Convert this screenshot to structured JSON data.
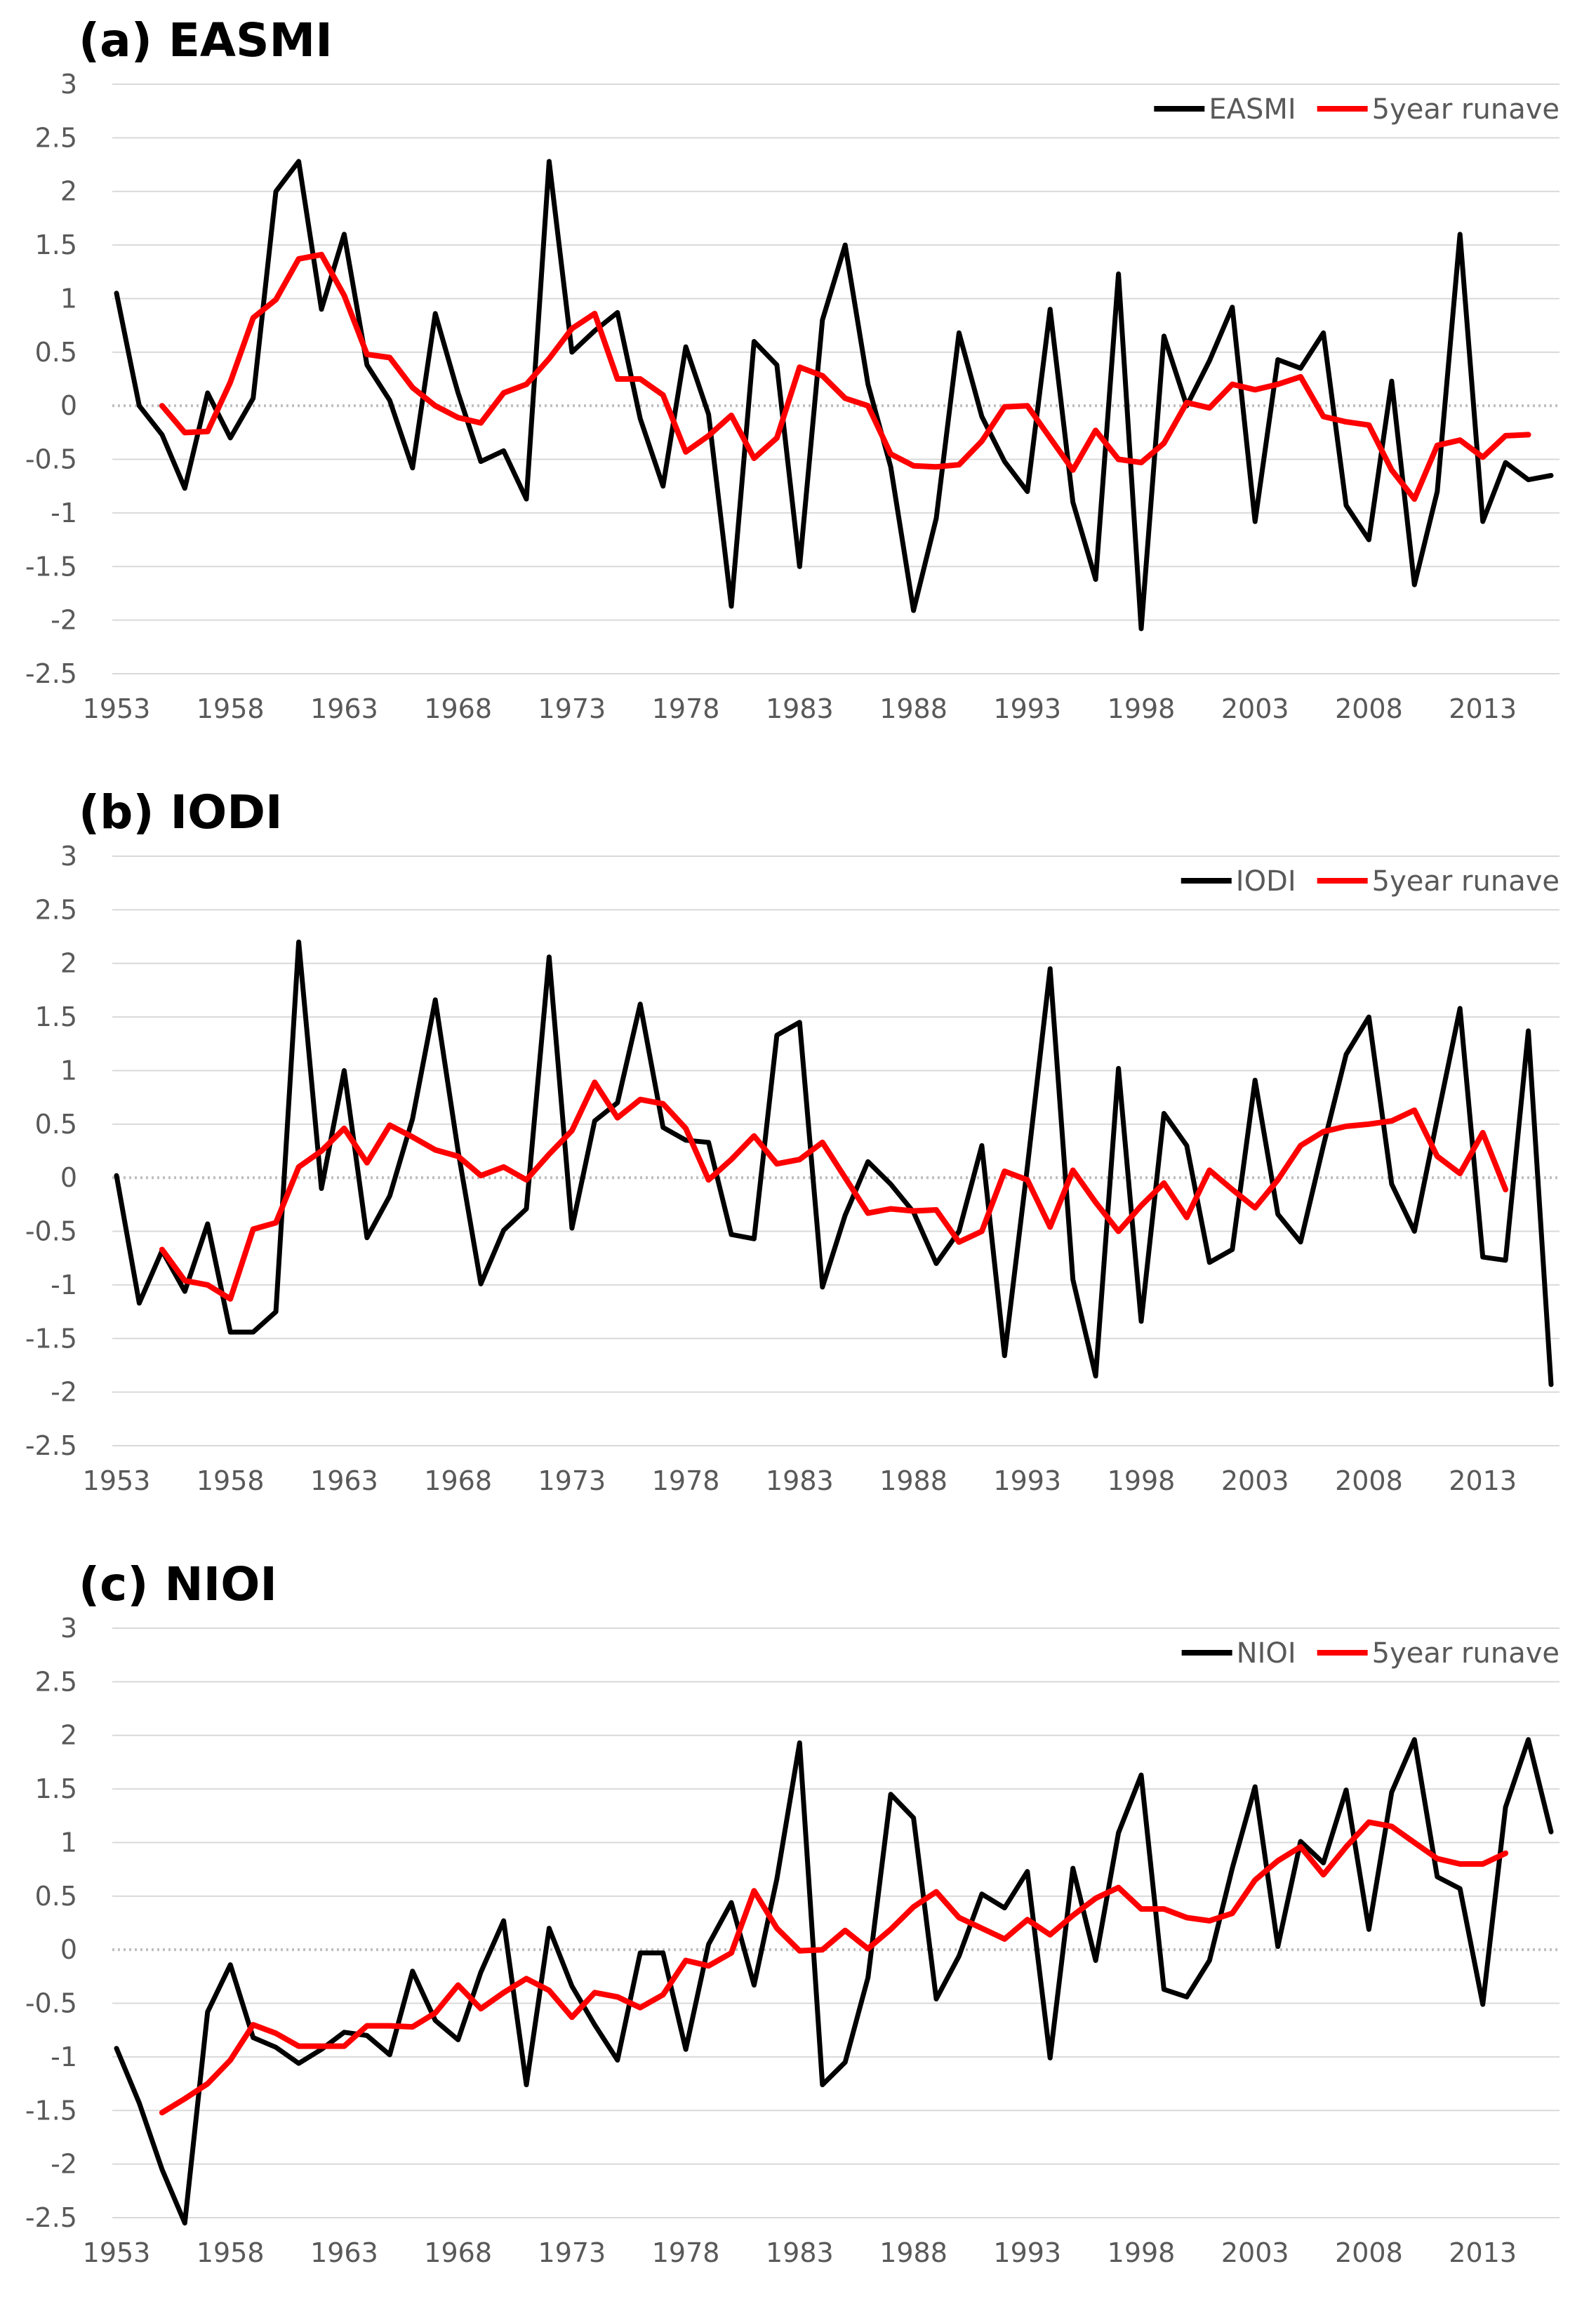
{
  "chart_data": [
    {
      "type": "line",
      "title": "(a)  EASMI",
      "x": [
        1953,
        1954,
        1955,
        1956,
        1957,
        1958,
        1959,
        1960,
        1961,
        1962,
        1963,
        1964,
        1965,
        1966,
        1967,
        1968,
        1969,
        1970,
        1971,
        1972,
        1973,
        1974,
        1975,
        1976,
        1977,
        1978,
        1979,
        1980,
        1981,
        1982,
        1983,
        1984,
        1985,
        1986,
        1987,
        1988,
        1989,
        1990,
        1991,
        1992,
        1993,
        1994,
        1995,
        1996,
        1997,
        1998,
        1999,
        2000,
        2001,
        2002,
        2003,
        2004,
        2005,
        2006,
        2007,
        2008,
        2009,
        2010,
        2011,
        2012,
        2013,
        2014,
        2015,
        2016
      ],
      "xticks": [
        "1953",
        "1958",
        "1963",
        "1968",
        "1973",
        "1978",
        "1983",
        "1988",
        "1993",
        "1998",
        "2003",
        "2008",
        "2013"
      ],
      "yticks": [
        "3",
        "2.5",
        "2",
        "1.5",
        "1",
        "0.5",
        "0",
        "-0.5",
        "-1",
        "-1.5",
        "-2",
        "-2.5"
      ],
      "ylim": [
        -2.5,
        3
      ],
      "grid": true,
      "legend_position": "top-right",
      "series": [
        {
          "name": "EASMI",
          "color": "#000000",
          "values": [
            1.05,
            0.0,
            -0.27,
            -0.77,
            0.12,
            -0.3,
            0.07,
            2.0,
            2.28,
            0.9,
            1.6,
            0.38,
            0.05,
            -0.58,
            0.86,
            0.12,
            -0.52,
            -0.42,
            -0.87,
            2.28,
            0.5,
            0.7,
            0.87,
            -0.12,
            -0.75,
            0.55,
            -0.08,
            -1.87,
            0.6,
            0.38,
            -1.5,
            0.8,
            1.5,
            0.2,
            -0.57,
            -1.91,
            -1.05,
            0.68,
            -0.1,
            -0.52,
            -0.8,
            0.9,
            -0.9,
            -1.62,
            1.23,
            -2.08,
            0.65,
            0.0,
            0.42,
            0.92,
            -1.08,
            0.43,
            0.35,
            0.68,
            -0.93,
            -1.25,
            0.23,
            -1.67,
            -0.8,
            1.6,
            -1.08,
            -0.53,
            -0.69,
            -0.65
          ]
        },
        {
          "name": "5year runave",
          "color": "#ff0000",
          "values": [
            null,
            null,
            0.0,
            -0.25,
            -0.24,
            0.22,
            0.82,
            0.99,
            1.37,
            1.41,
            1.03,
            0.48,
            0.45,
            0.17,
            0.0,
            -0.11,
            -0.16,
            0.12,
            0.2,
            0.44,
            0.72,
            0.86,
            0.25,
            0.25,
            0.1,
            -0.43,
            -0.28,
            -0.09,
            -0.49,
            -0.3,
            0.36,
            0.28,
            0.07,
            0.0,
            -0.45,
            -0.56,
            -0.57,
            -0.55,
            -0.33,
            -0.01,
            0.0,
            -0.3,
            -0.6,
            -0.23,
            -0.5,
            -0.53,
            -0.35,
            0.03,
            -0.02,
            0.2,
            0.15,
            0.2,
            0.27,
            -0.1,
            -0.15,
            -0.18,
            -0.6,
            -0.87,
            -0.37,
            -0.32,
            -0.48,
            -0.28,
            -0.27,
            null
          ]
        }
      ]
    },
    {
      "type": "line",
      "title": "(b)  IODI",
      "x": [
        1953,
        1954,
        1955,
        1956,
        1957,
        1958,
        1959,
        1960,
        1961,
        1962,
        1963,
        1964,
        1965,
        1966,
        1967,
        1968,
        1969,
        1970,
        1971,
        1972,
        1973,
        1974,
        1975,
        1976,
        1977,
        1978,
        1979,
        1980,
        1981,
        1982,
        1983,
        1984,
        1985,
        1986,
        1987,
        1988,
        1989,
        1990,
        1991,
        1992,
        1993,
        1994,
        1995,
        1996,
        1997,
        1998,
        1999,
        2000,
        2001,
        2002,
        2003,
        2004,
        2005,
        2006,
        2007,
        2008,
        2009,
        2010,
        2011,
        2012,
        2013,
        2014,
        2015,
        2016
      ],
      "xticks": [
        "1953",
        "1958",
        "1963",
        "1968",
        "1973",
        "1978",
        "1983",
        "1988",
        "1993",
        "1998",
        "2003",
        "2008",
        "2013"
      ],
      "yticks": [
        "3",
        "2.5",
        "2",
        "1.5",
        "1",
        "0.5",
        "0",
        "-0.5",
        "-1",
        "-1.5",
        "-2",
        "-2.5"
      ],
      "ylim": [
        -2.5,
        3
      ],
      "grid": true,
      "legend_position": "top-right",
      "series": [
        {
          "name": "IODI",
          "color": "#000000",
          "values": [
            0.02,
            -1.17,
            -0.68,
            -1.06,
            -0.43,
            -1.44,
            -1.44,
            -1.25,
            2.2,
            -0.1,
            1.0,
            -0.56,
            -0.17,
            0.55,
            1.66,
            0.25,
            -0.99,
            -0.49,
            -0.29,
            2.06,
            -0.47,
            0.53,
            0.7,
            1.62,
            0.47,
            0.35,
            0.33,
            -0.53,
            -0.57,
            1.33,
            1.45,
            -1.02,
            -0.35,
            0.15,
            -0.06,
            -0.32,
            -0.8,
            -0.5,
            0.3,
            -1.66,
            0.1,
            1.95,
            -0.95,
            -1.85,
            1.02,
            -1.34,
            0.6,
            0.3,
            -0.79,
            -0.67,
            0.91,
            -0.34,
            -0.6,
            0.3,
            1.15,
            1.5,
            -0.06,
            -0.5,
            0.55,
            1.58,
            -0.74,
            -0.77,
            1.37,
            -1.93
          ]
        },
        {
          "name": "5year runave",
          "color": "#ff0000",
          "values": [
            null,
            null,
            -0.67,
            -0.96,
            -1.0,
            -1.13,
            -0.48,
            -0.42,
            0.1,
            0.25,
            0.46,
            0.14,
            0.49,
            0.38,
            0.26,
            0.2,
            0.02,
            0.1,
            -0.02,
            0.22,
            0.44,
            0.89,
            0.56,
            0.73,
            0.69,
            0.46,
            -0.02,
            0.17,
            0.39,
            0.13,
            0.17,
            0.33,
            0.0,
            -0.33,
            -0.29,
            -0.31,
            -0.3,
            -0.6,
            -0.5,
            0.06,
            -0.02,
            -0.46,
            0.07,
            -0.23,
            -0.5,
            -0.26,
            -0.05,
            -0.37,
            0.07,
            -0.11,
            -0.28,
            -0.02,
            0.3,
            0.43,
            0.48,
            0.5,
            0.53,
            0.63,
            0.2,
            0.04,
            0.42,
            -0.11,
            null,
            null
          ]
        }
      ]
    },
    {
      "type": "line",
      "title": "(c)  NIOI",
      "x": [
        1953,
        1954,
        1955,
        1956,
        1957,
        1958,
        1959,
        1960,
        1961,
        1962,
        1963,
        1964,
        1965,
        1966,
        1967,
        1968,
        1969,
        1970,
        1971,
        1972,
        1973,
        1974,
        1975,
        1976,
        1977,
        1978,
        1979,
        1980,
        1981,
        1982,
        1983,
        1984,
        1985,
        1986,
        1987,
        1988,
        1989,
        1990,
        1991,
        1992,
        1993,
        1994,
        1995,
        1996,
        1997,
        1998,
        1999,
        2000,
        2001,
        2002,
        2003,
        2004,
        2005,
        2006,
        2007,
        2008,
        2009,
        2010,
        2011,
        2012,
        2013,
        2014,
        2015,
        2016
      ],
      "xticks": [
        "1953",
        "1958",
        "1963",
        "1968",
        "1973",
        "1978",
        "1983",
        "1988",
        "1993",
        "1998",
        "2003",
        "2008",
        "2013"
      ],
      "yticks": [
        "3",
        "2.5",
        "2",
        "1.5",
        "1",
        "0.5",
        "0",
        "-0.5",
        "-1",
        "-1.5",
        "-2",
        "-2.5"
      ],
      "ylim": [
        -2.5,
        3
      ],
      "grid": true,
      "legend_position": "top-right",
      "series": [
        {
          "name": "NIOI",
          "color": "#000000",
          "values": [
            -0.92,
            -1.43,
            -2.05,
            -2.55,
            -0.58,
            -0.14,
            -0.82,
            -0.91,
            -1.06,
            -0.93,
            -0.77,
            -0.8,
            -0.98,
            -0.2,
            -0.66,
            -0.84,
            -0.21,
            0.27,
            -1.26,
            0.2,
            -0.34,
            -0.7,
            -1.03,
            -0.03,
            -0.03,
            -0.93,
            0.05,
            0.44,
            -0.33,
            0.66,
            1.93,
            -1.26,
            -1.05,
            -0.26,
            1.45,
            1.23,
            -0.46,
            -0.06,
            0.52,
            0.39,
            0.73,
            -1.01,
            0.76,
            -0.1,
            1.09,
            1.63,
            -0.37,
            -0.44,
            -0.1,
            0.76,
            1.52,
            0.03,
            1.01,
            0.81,
            1.49,
            0.19,
            1.47,
            1.96,
            0.68,
            0.57,
            -0.51,
            1.33,
            1.96,
            1.1
          ]
        },
        {
          "name": "5year runave",
          "color": "#ff0000",
          "values": [
            null,
            null,
            -1.52,
            -1.39,
            -1.25,
            -1.03,
            -0.7,
            -0.78,
            -0.9,
            -0.9,
            -0.9,
            -0.71,
            -0.71,
            -0.72,
            -0.59,
            -0.33,
            -0.55,
            -0.4,
            -0.27,
            -0.38,
            -0.63,
            -0.4,
            -0.44,
            -0.54,
            -0.42,
            -0.1,
            -0.15,
            -0.03,
            0.55,
            0.2,
            -0.01,
            0.0,
            0.18,
            0.01,
            0.19,
            0.4,
            0.54,
            0.3,
            0.2,
            0.1,
            0.28,
            0.14,
            0.32,
            0.48,
            0.58,
            0.38,
            0.38,
            0.3,
            0.27,
            0.34,
            0.65,
            0.83,
            0.96,
            0.7,
            0.96,
            1.19,
            1.15,
            1.0,
            0.85,
            0.8,
            0.8,
            0.9,
            null,
            null
          ]
        }
      ]
    }
  ]
}
